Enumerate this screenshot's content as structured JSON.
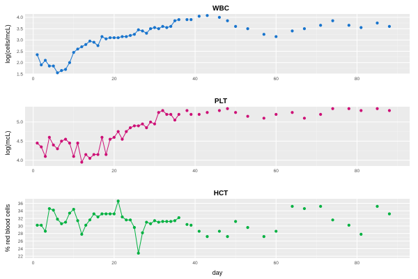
{
  "chart_data": [
    {
      "type": "line",
      "title": "WBC",
      "ylabel": "log(cells/mcL)",
      "xlabel": "",
      "color": "#1874CD",
      "xlim": [
        -2,
        93
      ],
      "ylim": [
        1.5,
        4.15
      ],
      "xticks": [
        0,
        20,
        40,
        60,
        80
      ],
      "yticks": [
        1.5,
        2.0,
        2.5,
        3.0,
        3.5,
        4.0
      ],
      "ytick_labels": [
        "1.5",
        "2.0",
        "2.5",
        "3.0",
        "3.5",
        "4.0"
      ],
      "grid": true,
      "connected_x_max": 36,
      "x": [
        1,
        2,
        3,
        4,
        5,
        6,
        7,
        8,
        9,
        10,
        11,
        12,
        13,
        14,
        15,
        16,
        17,
        18,
        19,
        20,
        21,
        22,
        23,
        24,
        25,
        26,
        27,
        28,
        29,
        30,
        31,
        32,
        33,
        34,
        35,
        36,
        38,
        39,
        41,
        43,
        46,
        48,
        50,
        53,
        57,
        60,
        64,
        67,
        71,
        74,
        78,
        81,
        85,
        88
      ],
      "y": [
        2.35,
        1.9,
        2.1,
        1.85,
        1.85,
        1.55,
        1.65,
        1.7,
        2.0,
        2.45,
        2.6,
        2.7,
        2.8,
        2.95,
        2.9,
        2.75,
        3.15,
        3.05,
        3.1,
        3.1,
        3.1,
        3.15,
        3.15,
        3.2,
        3.25,
        3.45,
        3.4,
        3.3,
        3.5,
        3.55,
        3.5,
        3.6,
        3.55,
        3.6,
        3.85,
        3.9,
        3.9,
        3.9,
        4.05,
        4.08,
        4.0,
        3.85,
        3.6,
        3.5,
        3.25,
        3.15,
        3.4,
        3.5,
        3.65,
        3.85,
        3.65,
        3.55,
        3.75,
        3.6
      ]
    },
    {
      "type": "line",
      "title": "PLT",
      "ylabel": "log(mcL)",
      "xlabel": "",
      "color": "#CD1076",
      "xlim": [
        -2,
        93
      ],
      "ylim": [
        3.85,
        5.4
      ],
      "xticks": [
        0,
        20,
        40,
        60,
        80
      ],
      "yticks": [
        4.0,
        4.5,
        5.0
      ],
      "ytick_labels": [
        "4.0",
        "4.5",
        "5.0"
      ],
      "grid": true,
      "connected_x_max": 36,
      "x": [
        1,
        2,
        3,
        4,
        5,
        6,
        7,
        8,
        9,
        10,
        11,
        12,
        13,
        14,
        15,
        16,
        17,
        18,
        19,
        20,
        21,
        22,
        23,
        24,
        25,
        26,
        27,
        28,
        29,
        30,
        31,
        32,
        33,
        34,
        35,
        36,
        38,
        39,
        41,
        43,
        46,
        48,
        50,
        53,
        57,
        60,
        64,
        67,
        71,
        74,
        78,
        81,
        85,
        88
      ],
      "y": [
        4.45,
        4.35,
        4.1,
        4.6,
        4.4,
        4.3,
        4.5,
        4.55,
        4.45,
        4.1,
        4.45,
        3.95,
        4.15,
        4.05,
        4.15,
        4.15,
        4.6,
        4.15,
        4.55,
        4.6,
        4.75,
        4.55,
        4.75,
        4.85,
        4.9,
        4.9,
        4.95,
        4.85,
        5.0,
        4.95,
        5.25,
        5.3,
        5.2,
        5.2,
        5.05,
        5.2,
        5.3,
        5.2,
        5.2,
        5.25,
        5.3,
        5.35,
        5.25,
        5.15,
        5.1,
        5.2,
        5.25,
        5.1,
        5.2,
        5.35,
        5.35,
        5.3,
        5.35,
        5.3
      ]
    },
    {
      "type": "line",
      "title": "HCT",
      "ylabel": "% red blood cells",
      "xlabel": "day",
      "color": "#00B140",
      "xlim": [
        -2,
        93
      ],
      "ylim": [
        21.5,
        37.2
      ],
      "xticks": [
        0,
        20,
        40,
        60,
        80
      ],
      "yticks": [
        22,
        24,
        26,
        28,
        30,
        32,
        34,
        36
      ],
      "ytick_labels": [
        "22",
        "24",
        "26",
        "28",
        "30",
        "32",
        "34",
        "36"
      ],
      "grid": true,
      "connected_x_max": 36,
      "x": [
        1,
        2,
        3,
        4,
        5,
        6,
        7,
        8,
        9,
        10,
        11,
        12,
        13,
        14,
        15,
        16,
        17,
        18,
        19,
        20,
        21,
        22,
        23,
        24,
        25,
        26,
        27,
        28,
        29,
        30,
        31,
        32,
        33,
        34,
        35,
        36,
        38,
        39,
        41,
        43,
        46,
        48,
        50,
        53,
        57,
        60,
        64,
        67,
        71,
        74,
        78,
        81,
        85,
        88
      ],
      "y": [
        30.2,
        30.2,
        28.6,
        34.6,
        34.2,
        31.8,
        30.6,
        31.0,
        33.4,
        34.4,
        31.4,
        27.8,
        30.2,
        31.6,
        33.2,
        32.4,
        33.2,
        33.2,
        33.2,
        33.2,
        36.6,
        32.4,
        31.6,
        31.6,
        29.6,
        22.8,
        28.2,
        31.0,
        30.6,
        31.4,
        31.0,
        31.2,
        31.2,
        31.2,
        31.4,
        32.2,
        30.4,
        30.2,
        28.6,
        27.2,
        28.6,
        27.2,
        31.2,
        29.6,
        27.2,
        28.6,
        35.2,
        34.6,
        35.2,
        31.6,
        30.2,
        27.8,
        35.2,
        33.2
      ]
    }
  ]
}
